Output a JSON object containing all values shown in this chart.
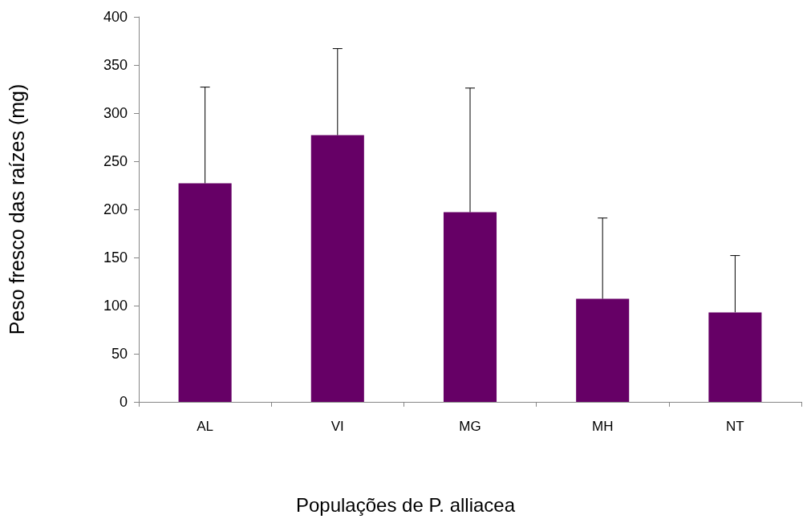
{
  "chart_data": {
    "type": "bar",
    "xlabel": "Populações de P. alliacea",
    "ylabel": "Peso fresco das raízes (mg)",
    "categories": [
      "AL",
      "VI",
      "MG",
      "MH",
      "NT"
    ],
    "values": [
      227,
      277,
      197,
      107,
      93
    ],
    "errors": [
      [
        227,
        327
      ],
      [
        277,
        367
      ],
      [
        197,
        326
      ],
      [
        107,
        191
      ],
      [
        93,
        152
      ]
    ],
    "color": "#660066",
    "ylim": [
      0,
      400
    ],
    "yticks": [
      0,
      50,
      100,
      150,
      200,
      250,
      300,
      350,
      400
    ],
    "grid": false
  }
}
